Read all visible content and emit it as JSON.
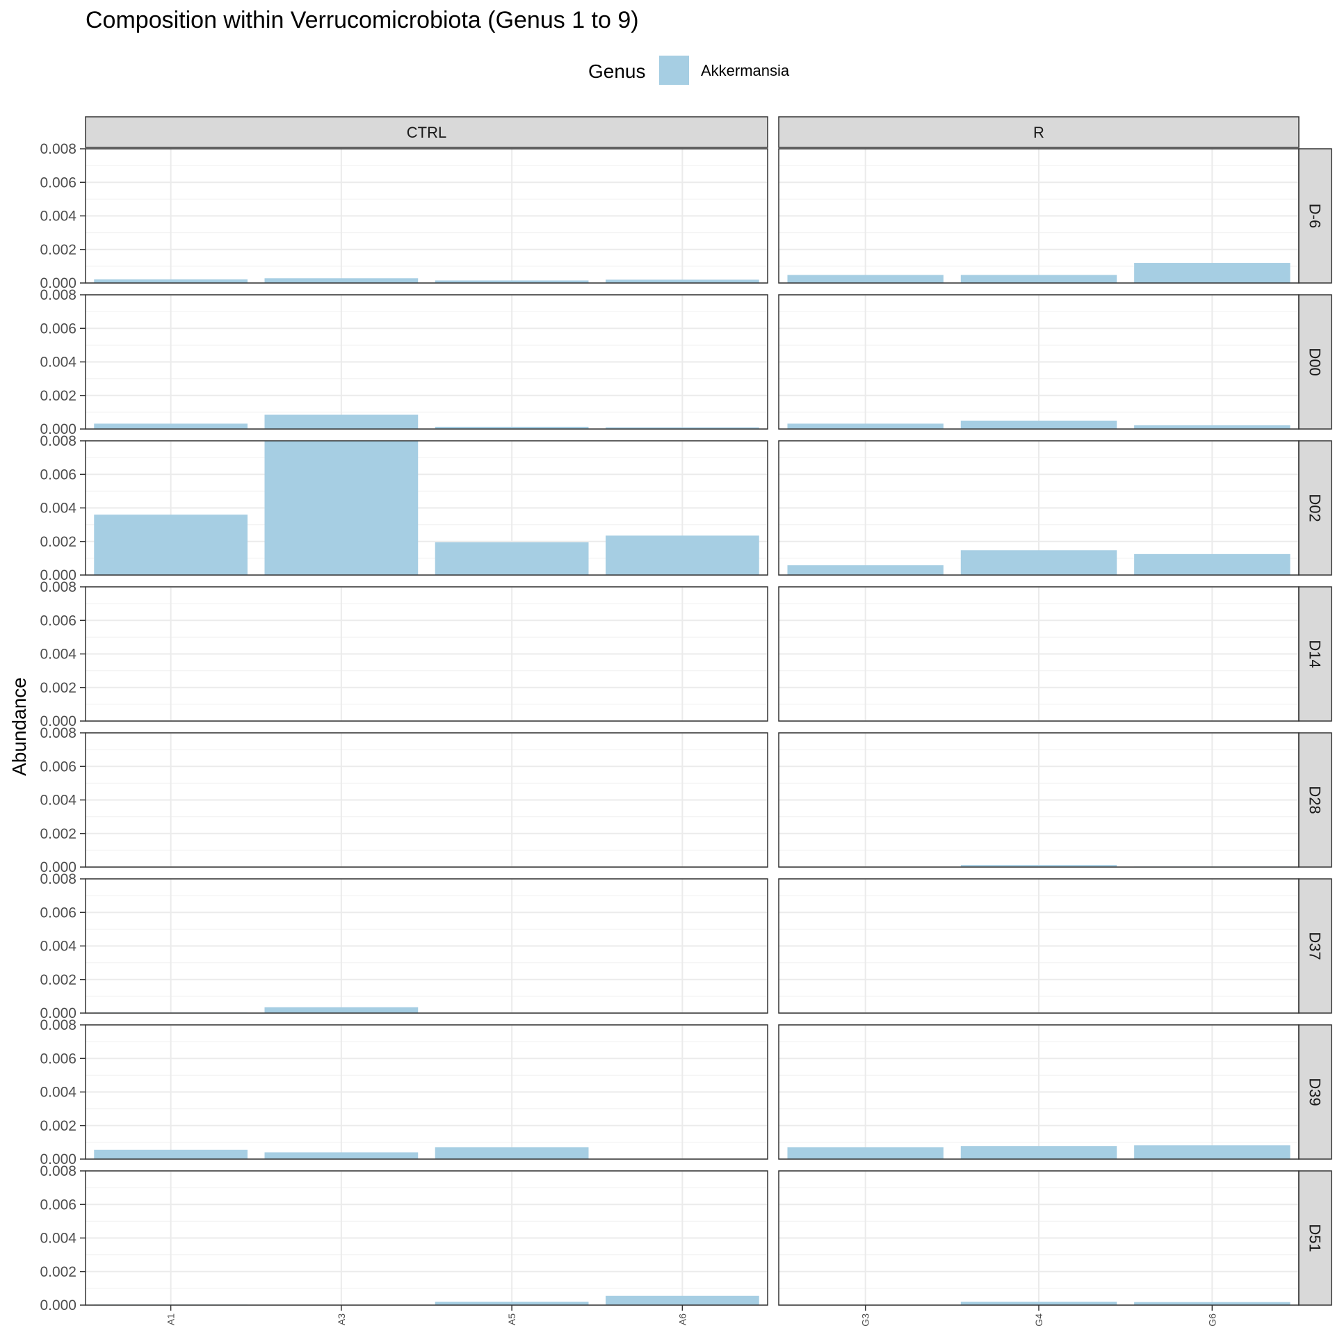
{
  "chart_data": {
    "type": "bar",
    "title": "Composition within Verrucomicrobiota (Genus 1 to 9)",
    "ylabel": "Abundance",
    "xlabel": "",
    "ylim": [
      0,
      0.008
    ],
    "y_ticks": [
      "0.000",
      "0.002",
      "0.004",
      "0.006",
      "0.008"
    ],
    "y_tick_values": [
      0,
      0.002,
      0.004,
      0.006,
      0.008
    ],
    "legend": {
      "title": "Genus",
      "placement": "top",
      "entries": [
        {
          "label": "Akkermansia",
          "color": "#a6cee3"
        }
      ]
    },
    "facet_columns": [
      {
        "label": "CTRL",
        "samples": [
          "A1",
          "A3",
          "A5",
          "A6"
        ]
      },
      {
        "label": "R",
        "samples": [
          "G3",
          "G4",
          "G6"
        ]
      }
    ],
    "facet_rows": [
      "D-6",
      "D00",
      "D02",
      "D14",
      "D28",
      "D37",
      "D39",
      "D51"
    ],
    "series": [
      {
        "name": "Akkermansia",
        "values": {
          "D-6": {
            "CTRL": [
              0.00022,
              0.00028,
              0.00015,
              0.0002
            ],
            "R": [
              0.00048,
              0.00048,
              0.0012
            ]
          },
          "D00": {
            "CTRL": [
              0.00032,
              0.00085,
              0.00013,
              0.0001
            ],
            "R": [
              0.00032,
              0.0005,
              0.00023
            ]
          },
          "D02": {
            "CTRL": [
              0.0036,
              0.0082,
              0.00195,
              0.00235
            ],
            "R": [
              0.00058,
              0.00148,
              0.00125
            ]
          },
          "D14": {
            "CTRL": [
              0,
              0,
              0,
              0
            ],
            "R": [
              2e-05,
              0,
              0
            ]
          },
          "D28": {
            "CTRL": [
              0,
              0,
              0,
              0
            ],
            "R": [
              0,
              0.00012,
              3e-05
            ]
          },
          "D37": {
            "CTRL": [
              3e-05,
              0.00035,
              0,
              0
            ],
            "R": [
              0,
              0,
              0
            ]
          },
          "D39": {
            "CTRL": [
              0.00055,
              0.0004,
              0.0007,
              0
            ],
            "R": [
              0.0007,
              0.00078,
              0.00082
            ]
          },
          "D51": {
            "CTRL": [
              3e-05,
              0,
              0.0002,
              0.00055
            ],
            "R": [
              0,
              0.0002,
              0.00018
            ]
          }
        }
      }
    ],
    "grid": true,
    "colors": {
      "bar": "#a6cee3",
      "strip_bg": "#d9d9d9",
      "grid": "#ebebeb",
      "border": "#333333"
    }
  }
}
